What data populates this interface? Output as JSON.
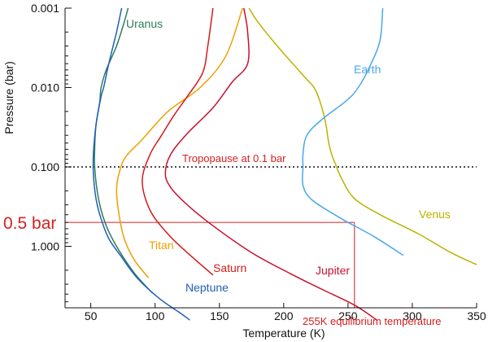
{
  "chart_data": {
    "type": "line",
    "xlabel": "Temperature (K)",
    "ylabel": "Pressure (bar)",
    "xlim": [
      30,
      350
    ],
    "ylim": [
      0.001,
      10
    ],
    "y_scale": "log",
    "y_inverted": true,
    "grid": false,
    "x_ticks": [
      50,
      100,
      150,
      200,
      250,
      300,
      350
    ],
    "y_ticks": [
      {
        "value": 0.001,
        "label": "0.001"
      },
      {
        "value": 0.01,
        "label": "0.010"
      },
      {
        "value": 0.1,
        "label": "0.100"
      },
      {
        "value": 1,
        "label": "1.000"
      }
    ],
    "series": [
      {
        "name": "Uranus",
        "color": "#2e7d5b",
        "points": [
          [
            79,
            0.001
          ],
          [
            76,
            0.0015
          ],
          [
            70,
            0.003
          ],
          [
            62,
            0.006
          ],
          [
            58,
            0.01
          ],
          [
            57,
            0.015
          ],
          [
            54,
            0.03
          ],
          [
            53,
            0.06
          ],
          [
            53,
            0.1
          ],
          [
            55,
            0.2
          ],
          [
            58,
            0.35
          ],
          [
            63,
            0.6
          ],
          [
            70,
            1.0
          ],
          [
            78,
            1.6
          ],
          [
            86,
            2.4
          ],
          [
            98,
            3.9
          ]
        ]
      },
      {
        "name": "Neptune",
        "color": "#1f5fb8",
        "points": [
          [
            74,
            0.001
          ],
          [
            70,
            0.002
          ],
          [
            64,
            0.005
          ],
          [
            60,
            0.01
          ],
          [
            58,
            0.013
          ],
          [
            54,
            0.03
          ],
          [
            52,
            0.07
          ],
          [
            52,
            0.12
          ],
          [
            54,
            0.25
          ],
          [
            58,
            0.45
          ],
          [
            64,
            0.8
          ],
          [
            73,
            1.3
          ],
          [
            86,
            2.5
          ],
          [
            103,
            4.5
          ],
          [
            120,
            7.0
          ],
          [
            127,
            8.5
          ]
        ]
      },
      {
        "name": "Titan",
        "color": "#f0a000",
        "points": [
          [
            168,
            0.001
          ],
          [
            155,
            0.004
          ],
          [
            135,
            0.01
          ],
          [
            110,
            0.02
          ],
          [
            90,
            0.045
          ],
          [
            77,
            0.075
          ],
          [
            72,
            0.12
          ],
          [
            70,
            0.2
          ],
          [
            72,
            0.4
          ],
          [
            76,
            0.8
          ],
          [
            84,
            1.5
          ],
          [
            95,
            2.5
          ]
        ]
      },
      {
        "name": "Saturn",
        "color": "#d41a1a",
        "points": [
          [
            145,
            0.001
          ],
          [
            141,
            0.003
          ],
          [
            137,
            0.0065
          ],
          [
            125,
            0.013
          ],
          [
            115,
            0.022
          ],
          [
            105,
            0.04
          ],
          [
            96,
            0.07
          ],
          [
            90,
            0.15
          ],
          [
            96,
            0.35
          ],
          [
            110,
            0.7
          ],
          [
            125,
            1.2
          ],
          [
            145,
            2.3
          ]
        ]
      },
      {
        "name": "Jupiter",
        "color": "#c8102e",
        "points": [
          [
            169,
            0.001
          ],
          [
            172,
            0.002
          ],
          [
            172,
            0.005
          ],
          [
            160,
            0.0085
          ],
          [
            145,
            0.018
          ],
          [
            125,
            0.038
          ],
          [
            112,
            0.07
          ],
          [
            108,
            0.12
          ],
          [
            112,
            0.18
          ],
          [
            125,
            0.3
          ],
          [
            145,
            0.55
          ],
          [
            175,
            1.2
          ],
          [
            205,
            2.2
          ],
          [
            230,
            3.5
          ],
          [
            255,
            5.5
          ],
          [
            273,
            8.6
          ]
        ]
      },
      {
        "name": "Venus",
        "color": "#b8b400",
        "points": [
          [
            173,
            0.001
          ],
          [
            180,
            0.0015
          ],
          [
            195,
            0.003
          ],
          [
            215,
            0.007
          ],
          [
            225,
            0.011
          ],
          [
            232,
            0.025
          ],
          [
            235,
            0.05
          ],
          [
            238,
            0.075
          ],
          [
            240,
            0.09
          ],
          [
            245,
            0.14
          ],
          [
            255,
            0.25
          ],
          [
            275,
            0.4
          ],
          [
            305,
            0.7
          ],
          [
            330,
            1.2
          ],
          [
            350,
            1.7
          ]
        ]
      },
      {
        "name": "Earth",
        "color": "#4aa8e8",
        "points": [
          [
            277,
            0.001
          ],
          [
            275,
            0.0025
          ],
          [
            268,
            0.005
          ],
          [
            258,
            0.01
          ],
          [
            248,
            0.015
          ],
          [
            230,
            0.025
          ],
          [
            218,
            0.04
          ],
          [
            215,
            0.07
          ],
          [
            215,
            0.1
          ],
          [
            215,
            0.17
          ],
          [
            222,
            0.26
          ],
          [
            245,
            0.45
          ],
          [
            270,
            0.75
          ],
          [
            293,
            1.3
          ]
        ]
      }
    ],
    "annotations": [
      {
        "text": "Tropopause at 0.1 bar",
        "pressure": 0.1
      },
      {
        "text": "0.5 bar",
        "pressure": 0.5
      },
      {
        "text": "255K equilibrium temperature",
        "temperature": 255
      }
    ]
  }
}
